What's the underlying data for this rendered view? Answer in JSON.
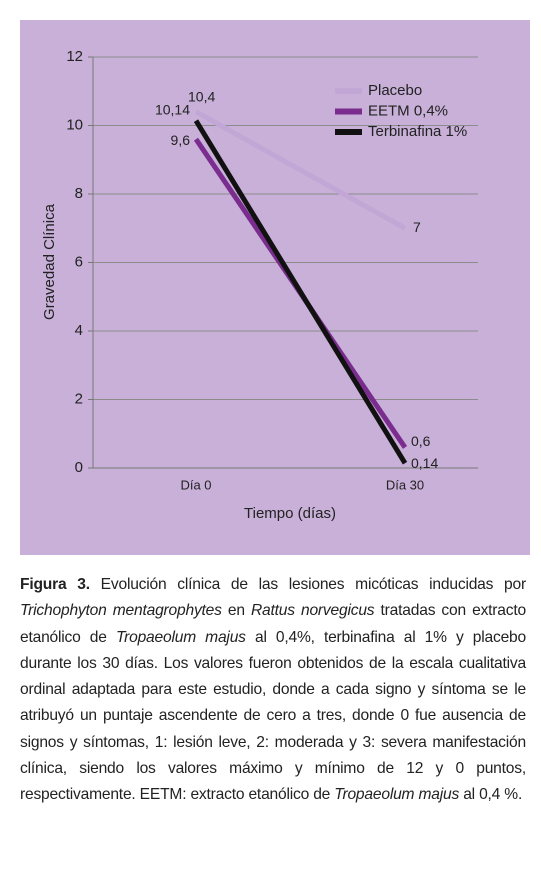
{
  "chart_data": {
    "type": "line",
    "categories": [
      "Día 0",
      "Día 30"
    ],
    "series": [
      {
        "name": "Placebo",
        "color": "#c2a6d6",
        "values": [
          10.4,
          7
        ],
        "value_labels": [
          "10,4",
          "7"
        ]
      },
      {
        "name": "EETM 0,4%",
        "color": "#7a2d8f",
        "values": [
          9.6,
          0.6
        ],
        "value_labels": [
          "9,6",
          "0,6"
        ]
      },
      {
        "name": "Terbinafina 1%",
        "color": "#111111",
        "values": [
          10.14,
          0.14
        ],
        "value_labels": [
          "10,14",
          "0,14"
        ]
      }
    ],
    "ylim": [
      0,
      12
    ],
    "yticks": [
      0,
      2,
      4,
      6,
      8,
      10,
      12
    ],
    "grid": true,
    "xlabel": "Tiempo (días)",
    "ylabel": "Gravedad Clínica",
    "legend": "top-right"
  },
  "caption": {
    "label": "Figura 3.",
    "parts": [
      "Evolución clínica de las lesiones micóticas inducidas por ",
      "Trichophyton mentagrophytes",
      " en ",
      "Rattus norvegicus",
      " tratadas con extracto etanólico de ",
      "Tropaeolum majus",
      " al 0,4%, terbinafina al 1% y placebo durante los 30 días. Los valores fueron obtenidos de la escala cualitativa ordinal adaptada para este estudio, donde a cada signo y síntoma se le atribuyó un puntaje ascendente de cero a tres, donde 0 fue ausencia de signos y síntomas, 1: lesión leve, 2: moderada y 3: severa manifestación clínica, siendo los valores máximo y mínimo de 12 y 0 puntos, respectivamente. EETM: extracto etanólico de ",
      "Tropaeolum majus",
      " al 0,4 %."
    ]
  }
}
